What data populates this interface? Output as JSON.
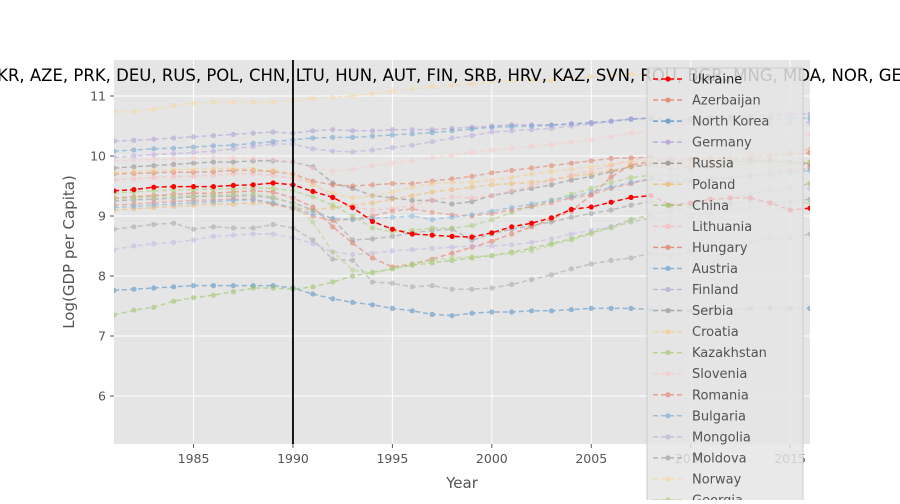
{
  "chart_data": {
    "type": "line",
    "title": "UKR, AZE, PRK, DEU, RUS, POL, CHN, LTU, HUN, AUT, FIN, SRB, HRV, KAZ, SVN, ROU, BGR, MNG, MDA, NOR, GEO",
    "xlabel": "Year",
    "ylabel": "Log(GDP per Capita)",
    "xlim": [
      1981,
      2016
    ],
    "ylim": [
      5.2,
      11.6
    ],
    "xticks": [
      1985,
      1990,
      1995,
      2000,
      2005,
      2010,
      2015
    ],
    "yticks": [
      6,
      7,
      8,
      9,
      10,
      11
    ],
    "vline": 1990,
    "grid": true,
    "legend_position": "right",
    "x": [
      1981,
      1982,
      1983,
      1984,
      1985,
      1986,
      1987,
      1988,
      1989,
      1990,
      1991,
      1992,
      1993,
      1994,
      1995,
      1996,
      1997,
      1998,
      1999,
      2000,
      2001,
      2002,
      2003,
      2004,
      2005,
      2006,
      2007,
      2008,
      2009,
      2010,
      2011,
      2012,
      2013,
      2014,
      2015,
      2016
    ],
    "series": [
      {
        "name": "Ukraine",
        "color": "#ff0000",
        "highlight": true,
        "values": [
          9.42,
          9.44,
          9.48,
          9.49,
          9.49,
          9.49,
          9.51,
          9.52,
          9.55,
          9.52,
          9.41,
          9.31,
          9.14,
          8.91,
          8.78,
          8.7,
          8.68,
          8.66,
          8.65,
          8.72,
          8.82,
          8.88,
          8.97,
          9.11,
          9.15,
          9.23,
          9.31,
          9.34,
          9.18,
          9.22,
          9.28,
          9.3,
          9.3,
          9.22,
          9.1,
          9.13
        ]
      },
      {
        "name": "Azerbaijan",
        "color": "#e5735c",
        "values": [
          9.3,
          9.32,
          9.34,
          9.36,
          9.38,
          9.38,
          9.4,
          9.42,
          9.4,
          9.3,
          9.15,
          8.82,
          8.55,
          8.3,
          8.15,
          8.2,
          8.28,
          8.38,
          8.48,
          8.58,
          8.7,
          8.82,
          8.95,
          9.08,
          9.35,
          9.65,
          9.85,
          9.9,
          9.95,
          9.96,
          9.92,
          9.9,
          9.92,
          9.93,
          9.9,
          9.85
        ]
      },
      {
        "name": "North Korea",
        "color": "#4c8dc4",
        "values": [
          7.76,
          7.78,
          7.8,
          7.82,
          7.84,
          7.84,
          7.84,
          7.84,
          7.84,
          7.8,
          7.7,
          7.62,
          7.56,
          7.52,
          7.46,
          7.42,
          7.36,
          7.34,
          7.38,
          7.4,
          7.4,
          7.42,
          7.42,
          7.44,
          7.46,
          7.46,
          7.46,
          7.44,
          7.42,
          7.42,
          7.44,
          7.44,
          7.46,
          7.46,
          7.46,
          7.46
        ]
      },
      {
        "name": "Germany",
        "color": "#b09ad6",
        "values": [
          10.25,
          10.26,
          10.28,
          10.3,
          10.32,
          10.34,
          10.36,
          10.38,
          10.4,
          10.38,
          10.42,
          10.44,
          10.42,
          10.42,
          10.44,
          10.44,
          10.44,
          10.46,
          10.48,
          10.5,
          10.52,
          10.52,
          10.52,
          10.54,
          10.56,
          10.58,
          10.62,
          10.64,
          10.58,
          10.62,
          10.66,
          10.66,
          10.68,
          10.68,
          10.7,
          10.7
        ]
      },
      {
        "name": "Russia",
        "color": "#8c8c8c",
        "values": [
          9.8,
          9.82,
          9.84,
          9.86,
          9.88,
          9.9,
          9.9,
          9.92,
          9.92,
          9.9,
          9.82,
          9.55,
          9.46,
          9.34,
          9.3,
          9.26,
          9.26,
          9.2,
          9.24,
          9.34,
          9.4,
          9.46,
          9.52,
          9.6,
          9.66,
          9.74,
          9.82,
          9.86,
          9.78,
          9.82,
          9.86,
          9.9,
          9.92,
          9.92,
          9.88,
          9.88
        ]
      },
      {
        "name": "Poland",
        "color": "#f0b86a",
        "values": [
          9.1,
          9.12,
          9.14,
          9.16,
          9.18,
          9.2,
          9.2,
          9.22,
          9.2,
          9.14,
          9.1,
          9.14,
          9.18,
          9.22,
          9.28,
          9.34,
          9.4,
          9.44,
          9.48,
          9.52,
          9.54,
          9.56,
          9.6,
          9.66,
          9.7,
          9.76,
          9.82,
          9.86,
          9.88,
          9.92,
          9.96,
          9.98,
          10.0,
          10.02,
          10.06,
          10.1
        ]
      },
      {
        "name": "China",
        "color": "#95c25e",
        "values": [
          7.35,
          7.43,
          7.48,
          7.58,
          7.64,
          7.68,
          7.74,
          7.8,
          7.8,
          7.78,
          7.82,
          7.9,
          8.0,
          8.06,
          8.12,
          8.18,
          8.22,
          8.26,
          8.3,
          8.34,
          8.4,
          8.46,
          8.54,
          8.62,
          8.72,
          8.82,
          8.94,
          9.02,
          9.08,
          9.16,
          9.24,
          9.3,
          9.36,
          9.42,
          9.48,
          9.54
        ]
      },
      {
        "name": "Lithuania",
        "color": "#f9b8b8",
        "values": [
          9.6,
          9.62,
          9.64,
          9.66,
          9.66,
          9.68,
          9.7,
          9.7,
          9.68,
          9.62,
          9.55,
          9.3,
          9.15,
          9.1,
          9.12,
          9.18,
          9.26,
          9.32,
          9.3,
          9.34,
          9.42,
          9.5,
          9.6,
          9.68,
          9.76,
          9.84,
          9.94,
          9.98,
          9.84,
          9.88,
          9.96,
          10.02,
          10.06,
          10.08,
          10.1,
          10.12
        ]
      },
      {
        "name": "Hungary",
        "color": "#e07a5f",
        "values": [
          9.7,
          9.71,
          9.72,
          9.73,
          9.73,
          9.74,
          9.76,
          9.76,
          9.74,
          9.7,
          9.58,
          9.52,
          9.5,
          9.52,
          9.54,
          9.54,
          9.58,
          9.62,
          9.66,
          9.72,
          9.76,
          9.8,
          9.84,
          9.88,
          9.92,
          9.96,
          9.97,
          9.98,
          9.92,
          9.94,
          9.96,
          9.94,
          9.96,
          10.0,
          10.03,
          10.05
        ]
      },
      {
        "name": "Austria",
        "color": "#6aa3cf",
        "values": [
          10.08,
          10.1,
          10.12,
          10.13,
          10.15,
          10.17,
          10.18,
          10.21,
          10.24,
          10.27,
          10.3,
          10.31,
          10.31,
          10.33,
          10.35,
          10.37,
          10.39,
          10.42,
          10.45,
          10.48,
          10.49,
          10.5,
          10.51,
          10.53,
          10.55,
          10.58,
          10.61,
          10.63,
          10.59,
          10.61,
          10.63,
          10.63,
          10.62,
          10.62,
          10.62,
          10.63
        ]
      },
      {
        "name": "Finland",
        "color": "#b8a8dc",
        "values": [
          9.98,
          10.0,
          10.02,
          10.04,
          10.06,
          10.08,
          10.12,
          10.16,
          10.2,
          10.2,
          10.12,
          10.08,
          10.07,
          10.1,
          10.14,
          10.18,
          10.24,
          10.3,
          10.34,
          10.4,
          10.42,
          10.44,
          10.46,
          10.5,
          10.53,
          10.58,
          10.62,
          10.62,
          10.54,
          10.56,
          10.58,
          10.56,
          10.55,
          10.54,
          10.54,
          10.56
        ]
      },
      {
        "name": "Serbia",
        "color": "#9a9a9a",
        "values": [
          9.25,
          9.27,
          9.28,
          9.3,
          9.32,
          9.33,
          9.33,
          9.34,
          9.3,
          9.22,
          9.1,
          8.95,
          8.6,
          8.62,
          8.66,
          8.72,
          8.76,
          8.78,
          8.6,
          8.7,
          8.78,
          8.84,
          8.9,
          8.98,
          9.04,
          9.1,
          9.18,
          9.24,
          9.2,
          9.2,
          9.22,
          9.2,
          9.24,
          9.22,
          9.24,
          9.28
        ]
      },
      {
        "name": "Croatia",
        "color": "#f7cf8c",
        "values": [
          9.72,
          9.74,
          9.76,
          9.77,
          9.78,
          9.79,
          9.79,
          9.78,
          9.76,
          9.7,
          9.52,
          9.38,
          9.3,
          9.34,
          9.4,
          9.48,
          9.54,
          9.56,
          9.56,
          9.6,
          9.64,
          9.7,
          9.74,
          9.78,
          9.82,
          9.86,
          9.9,
          9.92,
          9.85,
          9.84,
          9.84,
          9.82,
          9.82,
          9.82,
          9.86,
          9.9
        ]
      },
      {
        "name": "Kazakhstan",
        "color": "#a8cc72",
        "values": [
          9.38,
          9.4,
          9.42,
          9.43,
          9.44,
          9.45,
          9.45,
          9.47,
          9.46,
          9.42,
          9.32,
          9.18,
          9.0,
          8.8,
          8.74,
          8.76,
          8.8,
          8.8,
          8.84,
          8.94,
          9.06,
          9.16,
          9.26,
          9.36,
          9.46,
          9.56,
          9.64,
          9.68,
          9.68,
          9.74,
          9.8,
          9.84,
          9.88,
          9.9,
          9.9,
          9.9
        ]
      },
      {
        "name": "Slovenia",
        "color": "#fbc9c9",
        "values": [
          9.92,
          9.93,
          9.94,
          9.95,
          9.96,
          9.97,
          9.97,
          9.96,
          9.94,
          9.9,
          9.8,
          9.75,
          9.78,
          9.84,
          9.88,
          9.92,
          9.97,
          10.01,
          10.06,
          10.1,
          10.13,
          10.16,
          10.19,
          10.23,
          10.27,
          10.32,
          10.38,
          10.4,
          10.3,
          10.31,
          10.32,
          10.29,
          10.28,
          10.3,
          10.32,
          10.35
        ]
      },
      {
        "name": "Romania",
        "color": "#e58c78",
        "values": [
          9.18,
          9.2,
          9.22,
          9.24,
          9.26,
          9.27,
          9.28,
          9.28,
          9.2,
          9.12,
          9.0,
          8.92,
          8.95,
          9.0,
          9.08,
          9.12,
          9.06,
          9.02,
          9.0,
          9.04,
          9.1,
          9.16,
          9.22,
          9.3,
          9.36,
          9.46,
          9.54,
          9.62,
          9.56,
          9.58,
          9.62,
          9.64,
          9.68,
          9.72,
          9.76,
          9.8
        ]
      },
      {
        "name": "Bulgaria",
        "color": "#7fb2d9",
        "values": [
          9.14,
          9.16,
          9.18,
          9.2,
          9.22,
          9.24,
          9.26,
          9.27,
          9.22,
          9.14,
          9.04,
          8.96,
          8.94,
          8.96,
          8.98,
          9.0,
          8.94,
          8.98,
          9.02,
          9.08,
          9.14,
          9.2,
          9.26,
          9.32,
          9.4,
          9.48,
          9.56,
          9.62,
          9.58,
          9.6,
          9.62,
          9.64,
          9.66,
          9.68,
          9.72,
          9.76
        ]
      },
      {
        "name": "Mongolia",
        "color": "#c3b4e2",
        "values": [
          8.44,
          8.5,
          8.54,
          8.56,
          8.6,
          8.66,
          8.68,
          8.7,
          8.7,
          8.64,
          8.54,
          8.4,
          8.36,
          8.38,
          8.42,
          8.44,
          8.46,
          8.48,
          8.5,
          8.5,
          8.52,
          8.56,
          8.62,
          8.7,
          8.76,
          8.82,
          8.9,
          8.98,
          8.96,
          9.02,
          9.14,
          9.26,
          9.36,
          9.42,
          9.44,
          9.46
        ]
      },
      {
        "name": "Moldova",
        "color": "#a5a5a5",
        "values": [
          8.78,
          8.82,
          8.86,
          8.88,
          8.78,
          8.82,
          8.8,
          8.8,
          8.86,
          8.8,
          8.6,
          8.28,
          8.26,
          7.9,
          7.88,
          7.82,
          7.84,
          7.78,
          7.78,
          7.8,
          7.86,
          7.94,
          8.02,
          8.12,
          8.2,
          8.26,
          8.3,
          8.38,
          8.34,
          8.4,
          8.48,
          8.5,
          8.58,
          8.62,
          8.64,
          8.7
        ]
      },
      {
        "name": "Norway",
        "color": "#fad7a0",
        "values": [
          10.74,
          10.74,
          10.78,
          10.84,
          10.88,
          10.9,
          10.9,
          10.9,
          10.9,
          10.92,
          10.96,
          10.98,
          11.0,
          11.04,
          11.08,
          11.12,
          11.16,
          11.18,
          11.2,
          11.24,
          11.26,
          11.26,
          11.26,
          11.3,
          11.32,
          11.34,
          11.36,
          11.36,
          11.34,
          11.32,
          11.32,
          11.34,
          11.34,
          11.34,
          11.34,
          11.36
        ]
      },
      {
        "name": "Georgia",
        "color": "#b5d48a",
        "values": [
          9.28,
          9.3,
          9.32,
          9.33,
          9.34,
          9.35,
          9.36,
          9.37,
          9.32,
          9.2,
          8.9,
          8.4,
          8.1,
          8.05,
          8.12,
          8.2,
          8.26,
          8.3,
          8.32,
          8.34,
          8.38,
          8.42,
          8.52,
          8.6,
          8.7,
          8.8,
          8.9,
          8.96,
          8.92,
          8.98,
          9.04,
          9.1,
          9.14,
          9.18,
          9.2,
          9.22
        ]
      }
    ]
  }
}
